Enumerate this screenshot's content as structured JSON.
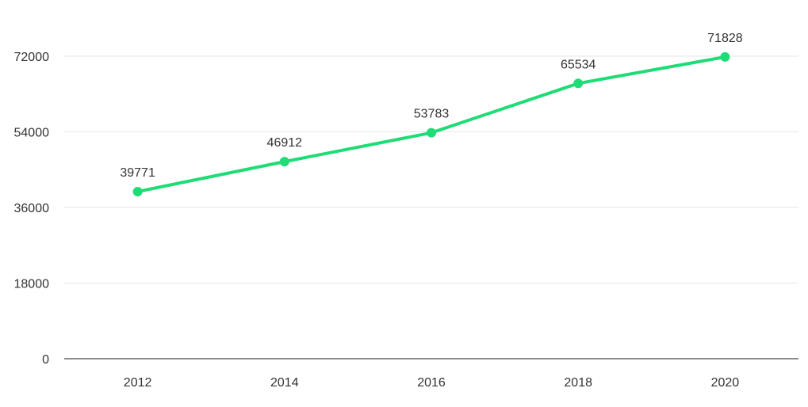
{
  "chart_data": {
    "type": "line",
    "title": "",
    "xlabel": "",
    "ylabel": "",
    "categories": [
      "2012",
      "2014",
      "2016",
      "2018",
      "2020"
    ],
    "series": [
      {
        "values": [
          39771,
          46912,
          53783,
          65534,
          71828
        ],
        "color": "#1fdc76"
      }
    ],
    "y_ticks": [
      "0",
      "18000",
      "36000",
      "54000",
      "72000"
    ],
    "ylim": [
      0,
      72000
    ],
    "grid": true,
    "data_labels": true
  },
  "colors": {
    "grid": "#e6e6e6",
    "axis": "#666666",
    "text": "#333333",
    "line": "#1fdc76"
  }
}
